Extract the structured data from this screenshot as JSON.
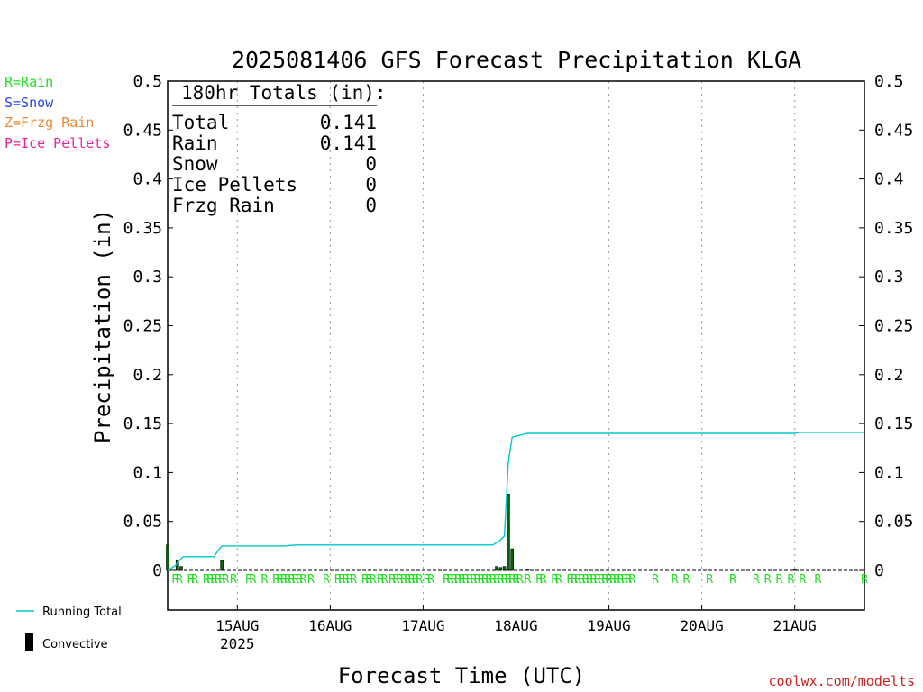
{
  "title": "2025081406 GFS Forecast Precipitation KLGA",
  "colors": {
    "running_total": "#00c8c8",
    "convective": "#000000",
    "convective_fill": "#006600",
    "rain": "#22dd22",
    "snow": "#2244ee",
    "frzg_rain": "#ee8833",
    "ice_pellets": "#ee2299",
    "credit": "#cc2222"
  },
  "legend": {
    "ptypes": [
      {
        "label": "R=Rain",
        "color_key": "rain"
      },
      {
        "label": "S=Snow",
        "color_key": "snow"
      },
      {
        "label": "Z=Frzg Rain",
        "color_key": "frzg_rain"
      },
      {
        "label": "P=Ice Pellets",
        "color_key": "ice_pellets"
      }
    ],
    "running_total_label": "Running Total",
    "convective_label": "Convective"
  },
  "totals_box": {
    "heading": "180hr Totals (in):",
    "rows": [
      {
        "label": "Total",
        "value": "0.141"
      },
      {
        "label": "Rain",
        "value": "0.141"
      },
      {
        "label": "Snow",
        "value": "0"
      },
      {
        "label": "Ice Pellets",
        "value": "0"
      },
      {
        "label": "Frzg Rain",
        "value": "0"
      }
    ]
  },
  "credit": "coolwx.com/modelts",
  "chart_data": {
    "type": "line",
    "title": "2025081406 GFS Forecast Precipitation KLGA",
    "xlabel": "Forecast Time (UTC)",
    "ylabel": "Precipitation (in)",
    "ylim": [
      0,
      0.5
    ],
    "y_ticks": [
      "0",
      "0.05",
      "0.1",
      "0.15",
      "0.2",
      "0.25",
      "0.3",
      "0.35",
      "0.4",
      "0.45",
      "0.5"
    ],
    "x_unit": "forecast hour",
    "xlim": [
      0,
      180
    ],
    "x_ticks": [
      {
        "hour": 18,
        "label": "15AUG",
        "sublabel": "2025"
      },
      {
        "hour": 42,
        "label": "16AUG",
        "sublabel": ""
      },
      {
        "hour": 66,
        "label": "17AUG",
        "sublabel": ""
      },
      {
        "hour": 90,
        "label": "18AUG",
        "sublabel": ""
      },
      {
        "hour": 114,
        "label": "19AUG",
        "sublabel": ""
      },
      {
        "hour": 138,
        "label": "20AUG",
        "sublabel": ""
      },
      {
        "hour": 162,
        "label": "21AUG",
        "sublabel": ""
      }
    ],
    "grid": "vertical dotted",
    "series": [
      {
        "name": "Running Total",
        "type": "line",
        "x": [
          0,
          2,
          3,
          4,
          12,
          13,
          14,
          30,
          33,
          84,
          86,
          87,
          88,
          89,
          90,
          92,
          93,
          162,
          163,
          180
        ],
        "y": [
          0.0,
          0.005,
          0.01,
          0.014,
          0.014,
          0.02,
          0.025,
          0.025,
          0.026,
          0.026,
          0.031,
          0.035,
          0.11,
          0.136,
          0.137,
          0.139,
          0.14,
          0.14,
          0.141,
          0.141
        ]
      },
      {
        "name": "Convective",
        "type": "bar",
        "x": [
          0,
          2.5,
          3.5,
          14,
          85,
          86,
          87,
          88,
          89,
          93,
          162
        ],
        "y": [
          0.026,
          0.01,
          0.004,
          0.01,
          0.004,
          0.003,
          0.004,
          0.078,
          0.022,
          0.001,
          0.001
        ]
      }
    ],
    "ptype_markers": {
      "symbol": "R",
      "hours": [
        2,
        3,
        6,
        7,
        10,
        11,
        12,
        13,
        14,
        15,
        17,
        21,
        22,
        25,
        28,
        29,
        30,
        31,
        32,
        33,
        34,
        35,
        37,
        41,
        44,
        45,
        46,
        47,
        48,
        51,
        52,
        53,
        55,
        56,
        58,
        59,
        60,
        61,
        62,
        63,
        64,
        65,
        67,
        68,
        72,
        73,
        74,
        75,
        76,
        77,
        78,
        79,
        80,
        81,
        82,
        83,
        84,
        85,
        86,
        87,
        88,
        89,
        90,
        91,
        93,
        96,
        97,
        100,
        101,
        104,
        105,
        106,
        107,
        108,
        109,
        110,
        111,
        112,
        113,
        114,
        115,
        116,
        117,
        118,
        119,
        120,
        126,
        131,
        134,
        140,
        146,
        152,
        155,
        158,
        161,
        164,
        168,
        180
      ]
    }
  }
}
